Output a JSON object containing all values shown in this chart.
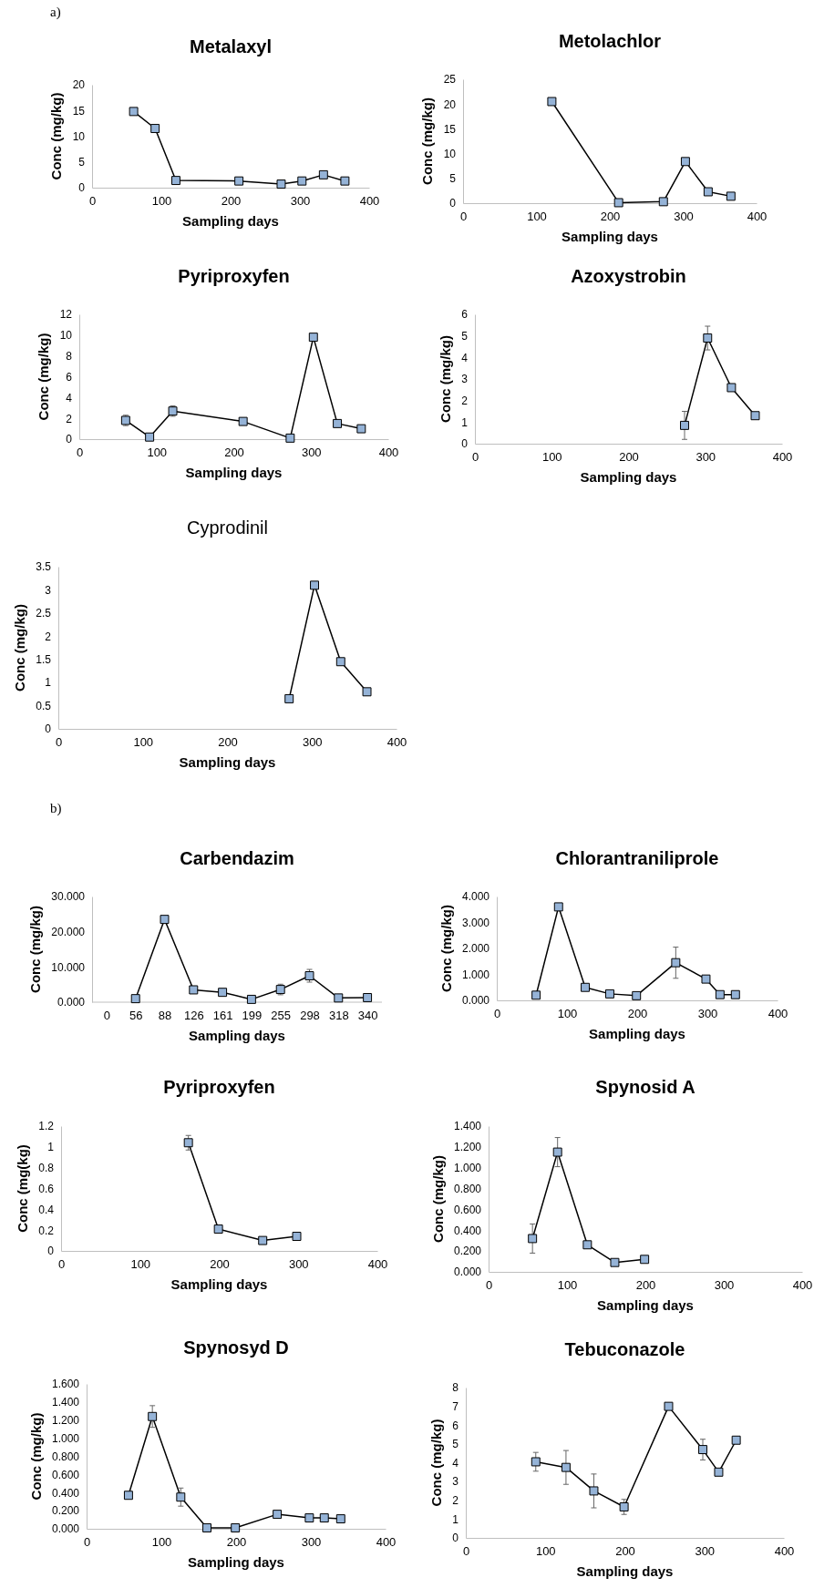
{
  "chart_data": [
    {
      "type": "line",
      "title": "Metalaxyl",
      "xlabel": "Sampling days",
      "ylabel": "Conc (mg/kg)",
      "annotations": [
        "a)"
      ],
      "marker": "square",
      "xlim": [
        0,
        400
      ],
      "xticks": [
        0,
        100,
        200,
        300,
        400
      ],
      "ylim": [
        0,
        20
      ],
      "yticks": [
        0,
        5,
        10,
        15,
        20
      ],
      "series": [
        {
          "color": "#95b3d7",
          "x": [
            60,
            91,
            121,
            212,
            273,
            303,
            334,
            365
          ],
          "values": [
            14.8,
            11.5,
            1.4,
            1.3,
            0.7,
            1.3,
            2.5,
            1.3
          ]
        }
      ]
    },
    {
      "type": "line",
      "title": "Metolachlor",
      "xlabel": "Sampling days",
      "ylabel": "Conc (mg/kg)",
      "marker": "square",
      "xlim": [
        0,
        400
      ],
      "xticks": [
        0,
        100,
        200,
        300,
        400
      ],
      "ylim": [
        0,
        25
      ],
      "yticks": [
        0,
        5,
        10,
        15,
        20,
        25
      ],
      "series": [
        {
          "color": "#95b3d7",
          "x": [
            121,
            212,
            273,
            303,
            334,
            365
          ],
          "values": [
            20.5,
            0.1,
            0.3,
            8.4,
            2.3,
            1.4
          ]
        }
      ]
    },
    {
      "type": "line",
      "title": "Pyriproxyfen",
      "xlabel": "Sampling days",
      "ylabel": "Conc (mg/kg)",
      "marker": "square",
      "xlim": [
        0,
        400
      ],
      "xticks": [
        0,
        100,
        200,
        300,
        400
      ],
      "ylim": [
        0,
        12
      ],
      "yticks": [
        0,
        2,
        4,
        6,
        8,
        10,
        12
      ],
      "series": [
        {
          "color": "#95b3d7",
          "x": [
            60,
            91,
            121,
            212,
            273,
            303,
            334,
            365
          ],
          "values": [
            1.8,
            0.2,
            2.7,
            1.7,
            0.1,
            9.8,
            1.5,
            1.0
          ],
          "errors": [
            0.5,
            null,
            0.5,
            0.3,
            null,
            null,
            null,
            null
          ]
        }
      ]
    },
    {
      "type": "line",
      "title": "Azoxystrobin",
      "xlabel": "Sampling days",
      "ylabel": "Conc (mg/kg)",
      "marker": "square",
      "xlim": [
        0,
        400
      ],
      "xticks": [
        0,
        100,
        200,
        300,
        400
      ],
      "ylim": [
        0,
        6
      ],
      "yticks": [
        0,
        1,
        2,
        3,
        4,
        5,
        6
      ],
      "series": [
        {
          "color": "#95b3d7",
          "x": [
            273,
            303,
            334,
            365
          ],
          "values": [
            0.85,
            4.9,
            2.6,
            1.3
          ],
          "errors": [
            0.65,
            0.55,
            null,
            null
          ]
        }
      ]
    },
    {
      "type": "line",
      "title": "Cyprodinil",
      "xlabel": "Sampling days",
      "ylabel": "Conc (mg/kg)",
      "marker": "square",
      "xlim": [
        0,
        400
      ],
      "xticks": [
        0,
        100,
        200,
        300,
        400
      ],
      "ylim": [
        0,
        3.5
      ],
      "yticks": [
        0,
        0.5,
        1,
        1.5,
        2,
        2.5,
        3,
        3.5
      ],
      "series": [
        {
          "color": "#95b3d7",
          "x": [
            273,
            303,
            334,
            365
          ],
          "values": [
            0.65,
            3.1,
            1.45,
            0.8
          ]
        }
      ]
    },
    {
      "type": "line",
      "title": "Carbendazim",
      "xlabel": "Sampling days",
      "ylabel": "Conc (mg/kg)",
      "annotations": [
        "b)"
      ],
      "marker": "square",
      "categories": [
        "0",
        "56",
        "88",
        "126",
        "161",
        "199",
        "255",
        "298",
        "318",
        "340"
      ],
      "ylim": [
        0,
        30
      ],
      "yticks": [
        {
          "value": 0,
          "label": "0.000"
        },
        {
          "value": 10,
          "label": "10.000"
        },
        {
          "value": 20,
          "label": "20.000"
        },
        {
          "value": 30,
          "label": "30.000"
        }
      ],
      "series": [
        {
          "color": "#95b3d7",
          "values": [
            null,
            1.0,
            23.5,
            3.5,
            2.8,
            0.8,
            3.6,
            7.5,
            1.2,
            1.3
          ],
          "errors": [
            null,
            null,
            null,
            null,
            null,
            null,
            1.5,
            1.8,
            null,
            null
          ]
        }
      ]
    },
    {
      "type": "line",
      "title": "Chlorantraniliprole",
      "xlabel": "Sampling days",
      "ylabel": "Conc (mg/kg)",
      "marker": "square",
      "xlim": [
        0,
        400
      ],
      "xticks": [
        0,
        100,
        200,
        300,
        400
      ],
      "ylim": [
        0,
        4
      ],
      "yticks": [
        {
          "value": 0,
          "label": "0.000"
        },
        {
          "value": 1,
          "label": "1.000"
        },
        {
          "value": 2,
          "label": "2.000"
        },
        {
          "value": 3,
          "label": "3.000"
        },
        {
          "value": 4,
          "label": "4.000"
        }
      ],
      "series": [
        {
          "color": "#95b3d7",
          "x": [
            56,
            88,
            126,
            161,
            199,
            255,
            298,
            318,
            340
          ],
          "values": [
            0.2,
            3.6,
            0.5,
            0.25,
            0.18,
            1.45,
            0.82,
            0.22,
            0.22
          ],
          "errors": [
            null,
            null,
            null,
            null,
            null,
            0.6,
            null,
            null,
            null
          ]
        }
      ]
    },
    {
      "type": "line",
      "title": "Pyriproxyfen",
      "xlabel": "Sampling days",
      "ylabel": "Conc (mg(kg)",
      "marker": "square",
      "xlim": [
        0,
        400
      ],
      "xticks": [
        0,
        100,
        200,
        300,
        400
      ],
      "ylim": [
        0,
        1.2
      ],
      "yticks": [
        0,
        0.2,
        0.4,
        0.6,
        0.8,
        1,
        1.2
      ],
      "series": [
        {
          "color": "#95b3d7",
          "x": [
            161,
            199,
            255,
            298
          ],
          "values": [
            1.04,
            0.21,
            0.1,
            0.14
          ],
          "errors": [
            0.07,
            0.03,
            null,
            null
          ]
        }
      ]
    },
    {
      "type": "line",
      "title": "Spynosid A",
      "xlabel": "Sampling days",
      "ylabel": "Conc (mg/kg)",
      "marker": "square",
      "xlim": [
        0,
        400
      ],
      "xticks": [
        0,
        100,
        200,
        300,
        400
      ],
      "ylim": [
        0,
        1.4
      ],
      "yticks": [
        {
          "value": 0,
          "label": "0.000"
        },
        {
          "value": 0.2,
          "label": "0.200"
        },
        {
          "value": 0.4,
          "label": "0.400"
        },
        {
          "value": 0.6,
          "label": "0.600"
        },
        {
          "value": 0.8,
          "label": "0.800"
        },
        {
          "value": 1,
          "label": "1.000"
        },
        {
          "value": 1.2,
          "label": "1.200"
        },
        {
          "value": 1.4,
          "label": "1.400"
        }
      ],
      "series": [
        {
          "color": "#95b3d7",
          "x": [
            56,
            88,
            126,
            161,
            199
          ],
          "values": [
            0.32,
            1.15,
            0.26,
            0.09,
            0.12
          ],
          "errors": [
            0.14,
            0.14,
            0.03,
            null,
            0.02
          ]
        }
      ]
    },
    {
      "type": "line",
      "title": "Spynosyd D",
      "xlabel": "Sampling days",
      "ylabel": "Conc (mg/kg)",
      "marker": "square",
      "xlim": [
        0,
        400
      ],
      "xticks": [
        0,
        100,
        200,
        300,
        400
      ],
      "ylim": [
        0,
        1.6
      ],
      "yticks": [
        {
          "value": 0,
          "label": "0.000"
        },
        {
          "value": 0.2,
          "label": "0.200"
        },
        {
          "value": 0.4,
          "label": "0.400"
        },
        {
          "value": 0.6,
          "label": "0.600"
        },
        {
          "value": 0.8,
          "label": "0.800"
        },
        {
          "value": 1,
          "label": "1.000"
        },
        {
          "value": 1.2,
          "label": "1.200"
        },
        {
          "value": 1.4,
          "label": "1.400"
        },
        {
          "value": 1.6,
          "label": "1.600"
        }
      ],
      "series": [
        {
          "color": "#95b3d7",
          "x": [
            56,
            88,
            126,
            161,
            199,
            255,
            298,
            318,
            340
          ],
          "values": [
            0.37,
            1.24,
            0.35,
            0.01,
            0.01,
            0.16,
            0.12,
            0.12,
            0.11
          ],
          "errors": [
            null,
            0.12,
            0.1,
            null,
            null,
            null,
            null,
            null,
            null
          ]
        }
      ]
    },
    {
      "type": "line",
      "title": "Tebuconazole",
      "xlabel": "Sampling days",
      "ylabel": "Conc (mg/kg)",
      "marker": "square",
      "xlim": [
        0,
        400
      ],
      "xticks": [
        0,
        100,
        200,
        300,
        400
      ],
      "ylim": [
        0,
        8
      ],
      "yticks": [
        0,
        1,
        2,
        3,
        4,
        5,
        6,
        7,
        8
      ],
      "series": [
        {
          "color": "#95b3d7",
          "x": [
            88,
            126,
            161,
            199,
            255,
            298,
            318,
            340
          ],
          "values": [
            4.05,
            3.75,
            2.5,
            1.65,
            7.0,
            4.7,
            3.5,
            5.2
          ],
          "errors": [
            0.5,
            0.9,
            0.9,
            0.4,
            null,
            0.55,
            null,
            null
          ]
        }
      ]
    }
  ]
}
